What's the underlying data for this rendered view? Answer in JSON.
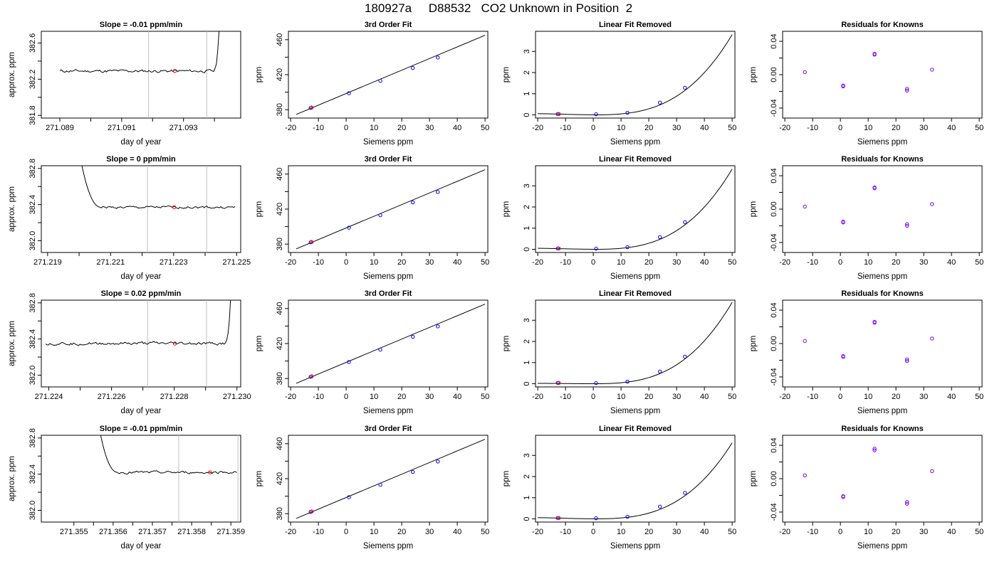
{
  "title": "180927a     D88532   CO2 Unknown in Position  2",
  "colors": {
    "axis": "#000000",
    "line": "#000000",
    "known": "#0000ff",
    "unknown": "#ff0000",
    "residual": "#8000ff",
    "vline": "#bebebe"
  },
  "chart_data": [
    {
      "row": 1,
      "col": 1,
      "type": "line",
      "title": "Slope =  -0.01  ppm/min",
      "xlabel": "day of year",
      "ylabel": "approx. ppm",
      "xlim": [
        271.0884,
        271.09485
      ],
      "ylim": [
        381.77,
        382.73
      ],
      "xticks": [
        271.089,
        271.09,
        271.091,
        271.092,
        271.093,
        271.094
      ],
      "xtick_labels": [
        "271.089",
        "",
        "271.091",
        "",
        "271.093",
        ""
      ],
      "yticks": [
        381.8,
        382.0,
        382.2,
        382.4,
        382.6
      ],
      "ytick_labels": [
        "381.8",
        "",
        "382.2",
        "",
        "382.6"
      ],
      "vlines": [
        271.09187,
        271.09375
      ],
      "trace": {
        "x0": 271.089,
        "x1": 271.09415,
        "n": 120,
        "base": 382.29,
        "noise": 0.012,
        "end_spike": {
          "start": 271.09395,
          "end": 271.09415,
          "to": 382.75
        }
      },
      "unknown_point": {
        "x": 271.09272,
        "y": 382.29
      }
    },
    {
      "row": 1,
      "col": 2,
      "type": "line",
      "title": "3rd Order Fit",
      "xlabel": "Siemens ppm",
      "ylabel": "ppm",
      "xlim": [
        -20.8,
        51
      ],
      "ylim": [
        370.4,
        469.6
      ],
      "xticks": [
        -20,
        -10,
        0,
        10,
        20,
        30,
        40,
        50
      ],
      "xtick_labels": [
        "-20",
        "-10",
        "0",
        "10",
        "20",
        "30",
        "40",
        "50"
      ],
      "yticks": [
        380,
        400,
        420,
        440,
        460
      ],
      "ytick_labels": [
        "380",
        "",
        "420",
        "",
        "460"
      ],
      "fit_line": {
        "x": [
          -18,
          50
        ],
        "y": [
          374.5,
          465.1
        ]
      },
      "knowns": {
        "x": [
          -12.8,
          1.0,
          12.3,
          24.0,
          33.0
        ],
        "y": [
          382.0,
          398.8,
          413.0,
          427.7,
          439.6
        ]
      },
      "unknown_point": {
        "x": -12.4,
        "y": 382.5
      }
    },
    {
      "row": 1,
      "col": 3,
      "type": "line",
      "title": "Linear Fit Removed",
      "xlabel": "Siemens ppm",
      "ylabel": "ppm",
      "xlim": [
        -20.8,
        51
      ],
      "ylim": [
        -0.15,
        3.95
      ],
      "xticks": [
        -20,
        -10,
        0,
        10,
        20,
        30,
        40,
        50
      ],
      "xtick_labels": [
        "-20",
        "-10",
        "0",
        "10",
        "20",
        "30",
        "40",
        "50"
      ],
      "yticks": [
        0,
        1,
        2,
        3
      ],
      "ytick_labels": [
        "0",
        "1",
        "2",
        "3"
      ],
      "curve": {
        "x0": -20,
        "x1": 50,
        "y_at_x0": 0.06,
        "y_at_50": 3.8
      },
      "knowns": {
        "x": [
          -12.8,
          1.0,
          12.3,
          24.0,
          33.0
        ],
        "y": [
          0.04,
          0.03,
          0.1,
          0.58,
          1.28
        ]
      },
      "unknown_point": {
        "x": -12.4,
        "y": 0.04
      }
    },
    {
      "row": 1,
      "col": 4,
      "type": "scatter",
      "title": "Residuals for Knowns",
      "xlabel": "Siemens ppm",
      "ylabel": "ppm",
      "xlim": [
        -20.8,
        51
      ],
      "ylim": [
        -0.052,
        0.052
      ],
      "xticks": [
        -20,
        -10,
        0,
        10,
        20,
        30,
        40,
        50
      ],
      "xtick_labels": [
        "-20",
        "-10",
        "0",
        "10",
        "20",
        "30",
        "40",
        "50"
      ],
      "yticks": [
        -0.04,
        -0.02,
        0.0,
        0.02,
        0.04
      ],
      "ytick_labels": [
        "-0.04",
        "",
        "0.00",
        "",
        "0.04"
      ],
      "points": {
        "x": [
          -12.8,
          1.0,
          1.0,
          12.3,
          12.3,
          24.0,
          24.0,
          33.0
        ],
        "y": [
          0.003,
          -0.013,
          -0.014,
          0.025,
          0.024,
          -0.017,
          -0.019,
          0.006
        ]
      }
    },
    {
      "row": 2,
      "col": 1,
      "type": "line",
      "title": "Slope =  0  ppm/min",
      "xlabel": "day of year",
      "ylabel": "approx. ppm",
      "xlim": [
        271.2188,
        271.22513
      ],
      "ylim": [
        381.87,
        382.83
      ],
      "xticks": [
        271.219,
        271.22,
        271.221,
        271.222,
        271.223,
        271.224,
        271.225
      ],
      "xtick_labels": [
        "271.219",
        "",
        "271.221",
        "",
        "271.223",
        "",
        "271.225"
      ],
      "yticks": [
        382.0,
        382.2,
        382.4,
        382.6,
        382.8
      ],
      "ytick_labels": [
        "382.0",
        "",
        "382.4",
        "",
        "382.8"
      ],
      "vlines": [
        271.22217,
        271.22405
      ],
      "trace": {
        "x0": 271.22005,
        "x1": 271.22495,
        "n": 120,
        "base": 382.37,
        "noise": 0.01,
        "decay": {
          "from": 382.9,
          "end": 271.2207
        }
      },
      "unknown_point": {
        "x": 271.22302,
        "y": 382.37
      }
    },
    {
      "row": 2,
      "col": 2,
      "type": "line",
      "title": "3rd Order Fit",
      "xlabel": "Siemens ppm",
      "ylabel": "ppm",
      "xlim": [
        -20.8,
        51
      ],
      "ylim": [
        370.4,
        469.6
      ],
      "xticks": [
        -20,
        -10,
        0,
        10,
        20,
        30,
        40,
        50
      ],
      "xtick_labels": [
        "-20",
        "-10",
        "0",
        "10",
        "20",
        "30",
        "40",
        "50"
      ],
      "yticks": [
        380,
        400,
        420,
        440,
        460
      ],
      "ytick_labels": [
        "380",
        "",
        "420",
        "",
        "460"
      ],
      "fit_line": {
        "x": [
          -18,
          50
        ],
        "y": [
          374.5,
          465.1
        ]
      },
      "knowns": {
        "x": [
          -12.8,
          1.0,
          12.3,
          24.0,
          33.0
        ],
        "y": [
          382.0,
          398.8,
          413.0,
          427.7,
          439.6
        ]
      },
      "unknown_point": {
        "x": -12.4,
        "y": 382.5
      }
    },
    {
      "row": 2,
      "col": 3,
      "type": "line",
      "title": "Linear Fit Removed",
      "xlabel": "Siemens ppm",
      "ylabel": "ppm",
      "xlim": [
        -20.8,
        51
      ],
      "ylim": [
        -0.15,
        3.95
      ],
      "xticks": [
        -20,
        -10,
        0,
        10,
        20,
        30,
        40,
        50
      ],
      "xtick_labels": [
        "-20",
        "-10",
        "0",
        "10",
        "20",
        "30",
        "40",
        "50"
      ],
      "yticks": [
        0,
        1,
        2,
        3
      ],
      "ytick_labels": [
        "0",
        "1",
        "2",
        "3"
      ],
      "curve": {
        "x0": -20,
        "x1": 50,
        "y_at_x0": 0.05,
        "y_at_50": 3.8
      },
      "knowns": {
        "x": [
          -12.8,
          1.0,
          12.3,
          24.0,
          33.0
        ],
        "y": [
          0.04,
          0.03,
          0.1,
          0.58,
          1.28
        ]
      },
      "unknown_point": {
        "x": -12.4,
        "y": 0.04
      }
    },
    {
      "row": 2,
      "col": 4,
      "type": "scatter",
      "title": "Residuals for Knowns",
      "xlabel": "Siemens ppm",
      "ylabel": "ppm",
      "xlim": [
        -20.8,
        51
      ],
      "ylim": [
        -0.052,
        0.052
      ],
      "xticks": [
        -20,
        -10,
        0,
        10,
        20,
        30,
        40,
        50
      ],
      "xtick_labels": [
        "-20",
        "-10",
        "0",
        "10",
        "20",
        "30",
        "40",
        "50"
      ],
      "yticks": [
        -0.04,
        -0.02,
        0.0,
        0.02,
        0.04
      ],
      "ytick_labels": [
        "-0.04",
        "",
        "0.00",
        "",
        "0.04"
      ],
      "points": {
        "x": [
          -12.8,
          1.0,
          1.0,
          12.3,
          12.3,
          24.0,
          24.0,
          33.0
        ],
        "y": [
          0.003,
          -0.015,
          -0.016,
          0.026,
          0.025,
          -0.018,
          -0.02,
          0.006
        ]
      }
    },
    {
      "row": 3,
      "col": 1,
      "type": "line",
      "title": "Slope =  0.02  ppm/min",
      "xlabel": "day of year",
      "ylabel": "approx. ppm",
      "xlim": [
        271.22376,
        271.23012
      ],
      "ylim": [
        381.87,
        382.83
      ],
      "xticks": [
        271.224,
        271.225,
        271.226,
        271.227,
        271.228,
        271.229,
        271.23
      ],
      "xtick_labels": [
        "271.224",
        "",
        "271.226",
        "",
        "271.228",
        "",
        "271.230"
      ],
      "yticks": [
        382.0,
        382.2,
        382.4,
        382.6,
        382.8
      ],
      "ytick_labels": [
        "382.0",
        "",
        "382.4",
        "",
        "382.8"
      ],
      "vlines": [
        271.22715,
        271.22903
      ],
      "trace": {
        "x0": 271.2239,
        "x1": 271.2298,
        "n": 140,
        "base": 382.35,
        "noise": 0.012,
        "end_spike": {
          "start": 271.2296,
          "end": 271.2298,
          "to": 382.86
        }
      },
      "unknown_point": {
        "x": 271.22802,
        "y": 382.35
      }
    },
    {
      "row": 3,
      "col": 2,
      "type": "line",
      "title": "3rd Order Fit",
      "xlabel": "Siemens ppm",
      "ylabel": "ppm",
      "xlim": [
        -20.8,
        51
      ],
      "ylim": [
        370.4,
        469.6
      ],
      "xticks": [
        -20,
        -10,
        0,
        10,
        20,
        30,
        40,
        50
      ],
      "xtick_labels": [
        "-20",
        "-10",
        "0",
        "10",
        "20",
        "30",
        "40",
        "50"
      ],
      "yticks": [
        380,
        400,
        420,
        440,
        460
      ],
      "ytick_labels": [
        "380",
        "",
        "420",
        "",
        "460"
      ],
      "fit_line": {
        "x": [
          -18,
          50
        ],
        "y": [
          374.5,
          465.1
        ]
      },
      "knowns": {
        "x": [
          -12.8,
          1.0,
          12.3,
          24.0,
          33.0
        ],
        "y": [
          382.0,
          398.8,
          413.0,
          427.7,
          439.6
        ]
      },
      "unknown_point": {
        "x": -12.4,
        "y": 382.5
      }
    },
    {
      "row": 3,
      "col": 3,
      "type": "line",
      "title": "Linear Fit Removed",
      "xlabel": "Siemens ppm",
      "ylabel": "ppm",
      "xlim": [
        -20.8,
        51
      ],
      "ylim": [
        -0.15,
        3.95
      ],
      "xticks": [
        -20,
        -10,
        0,
        10,
        20,
        30,
        40,
        50
      ],
      "xtick_labels": [
        "-20",
        "-10",
        "0",
        "10",
        "20",
        "30",
        "40",
        "50"
      ],
      "yticks": [
        0,
        1,
        2,
        3
      ],
      "ytick_labels": [
        "0",
        "1",
        "2",
        "3"
      ],
      "curve": {
        "x0": -20,
        "x1": 50,
        "y_at_x0": 0.02,
        "y_at_50": 3.85
      },
      "knowns": {
        "x": [
          -12.8,
          1.0,
          12.3,
          24.0,
          33.0
        ],
        "y": [
          0.04,
          0.03,
          0.1,
          0.58,
          1.28
        ]
      },
      "unknown_point": {
        "x": -12.4,
        "y": 0.04
      }
    },
    {
      "row": 3,
      "col": 4,
      "type": "scatter",
      "title": "Residuals for Knowns",
      "xlabel": "Siemens ppm",
      "ylabel": "ppm",
      "xlim": [
        -20.8,
        51
      ],
      "ylim": [
        -0.052,
        0.052
      ],
      "xticks": [
        -20,
        -10,
        0,
        10,
        20,
        30,
        40,
        50
      ],
      "xtick_labels": [
        "-20",
        "-10",
        "0",
        "10",
        "20",
        "30",
        "40",
        "50"
      ],
      "yticks": [
        -0.04,
        -0.02,
        0.0,
        0.02,
        0.04
      ],
      "ytick_labels": [
        "-0.04",
        "",
        "0.00",
        "",
        "0.04"
      ],
      "points": {
        "x": [
          -12.8,
          1.0,
          1.0,
          12.3,
          12.3,
          24.0,
          24.0,
          33.0
        ],
        "y": [
          0.003,
          -0.015,
          -0.016,
          0.026,
          0.025,
          -0.019,
          -0.021,
          0.006
        ]
      }
    },
    {
      "row": 4,
      "col": 1,
      "type": "line",
      "title": "Slope =  -0.01  ppm/min",
      "xlabel": "day of year",
      "ylabel": "approx. ppm",
      "xlim": [
        271.35417,
        271.35925
      ],
      "ylim": [
        381.87,
        382.83
      ],
      "xticks": [
        271.355,
        271.3555,
        271.356,
        271.3565,
        271.357,
        271.3575,
        271.358,
        271.3585,
        271.359
      ],
      "xtick_labels": [
        "271.355",
        "",
        "271.356",
        "",
        "271.357",
        "",
        "271.358",
        "",
        "271.359"
      ],
      "yticks": [
        382.0,
        382.2,
        382.4,
        382.6,
        382.8
      ],
      "ytick_labels": [
        "382.0",
        "",
        "382.4",
        "",
        "382.8"
      ],
      "vlines": [
        271.35767,
        271.35918
      ],
      "trace": {
        "x0": 271.35565,
        "x1": 271.35915,
        "n": 110,
        "base": 382.42,
        "noise": 0.01,
        "decay": {
          "from": 382.9,
          "end": 271.35612
        }
      },
      "unknown_point": {
        "x": 271.35847,
        "y": 382.42
      }
    },
    {
      "row": 4,
      "col": 2,
      "type": "line",
      "title": "3rd Order Fit",
      "xlabel": "Siemens ppm",
      "ylabel": "ppm",
      "xlim": [
        -20.8,
        51
      ],
      "ylim": [
        370.4,
        469.6
      ],
      "xticks": [
        -20,
        -10,
        0,
        10,
        20,
        30,
        40,
        50
      ],
      "xtick_labels": [
        "-20",
        "-10",
        "0",
        "10",
        "20",
        "30",
        "40",
        "50"
      ],
      "yticks": [
        380,
        400,
        420,
        440,
        460
      ],
      "ytick_labels": [
        "380",
        "",
        "420",
        "",
        "460"
      ],
      "fit_line": {
        "x": [
          -18,
          50
        ],
        "y": [
          374.5,
          465.1
        ]
      },
      "knowns": {
        "x": [
          -12.8,
          1.0,
          12.3,
          24.0,
          33.0
        ],
        "y": [
          382.0,
          398.8,
          413.0,
          427.7,
          439.6
        ]
      },
      "unknown_point": {
        "x": -12.4,
        "y": 382.5
      }
    },
    {
      "row": 4,
      "col": 3,
      "type": "line",
      "title": "Linear Fit Removed",
      "xlabel": "Siemens ppm",
      "ylabel": "ppm",
      "xlim": [
        -20.8,
        51
      ],
      "ylim": [
        -0.15,
        3.95
      ],
      "xticks": [
        -20,
        -10,
        0,
        10,
        20,
        30,
        40,
        50
      ],
      "xtick_labels": [
        "-20",
        "-10",
        "0",
        "10",
        "20",
        "30",
        "40",
        "50"
      ],
      "yticks": [
        0,
        1,
        2,
        3
      ],
      "ytick_labels": [
        "0",
        "1",
        "2",
        "3"
      ],
      "curve": {
        "x0": -20,
        "x1": 50,
        "y_at_x0": 0.06,
        "y_at_50": 3.6
      },
      "knowns": {
        "x": [
          -12.8,
          1.0,
          12.3,
          24.0,
          33.0
        ],
        "y": [
          0.04,
          0.03,
          0.1,
          0.58,
          1.23
        ]
      },
      "unknown_point": {
        "x": -12.4,
        "y": 0.04
      }
    },
    {
      "row": 4,
      "col": 4,
      "type": "scatter",
      "title": "Residuals for Knowns",
      "xlabel": "Siemens ppm",
      "ylabel": "ppm",
      "xlim": [
        -20.8,
        51
      ],
      "ylim": [
        -0.052,
        0.052
      ],
      "xticks": [
        -20,
        -10,
        0,
        10,
        20,
        30,
        40,
        50
      ],
      "xtick_labels": [
        "-20",
        "-10",
        "0",
        "10",
        "20",
        "30",
        "40",
        "50"
      ],
      "yticks": [
        -0.04,
        -0.02,
        0.0,
        0.02,
        0.04
      ],
      "ytick_labels": [
        "-0.04",
        "",
        "0.00",
        "",
        "0.04"
      ],
      "points": {
        "x": [
          -12.8,
          1.0,
          1.0,
          12.3,
          12.3,
          24.0,
          24.0,
          33.0
        ],
        "y": [
          0.004,
          -0.021,
          -0.022,
          0.036,
          0.034,
          -0.028,
          -0.03,
          0.009
        ]
      }
    }
  ]
}
